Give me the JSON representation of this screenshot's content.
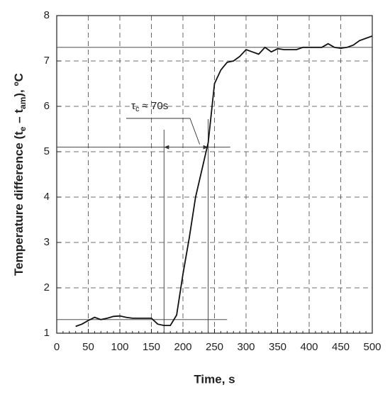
{
  "chart_data": {
    "type": "line",
    "xlabel": "Time, s",
    "ylabel_parts": [
      "Temperature difference (t",
      "e",
      " – t",
      "am",
      "), ºC"
    ],
    "annotation_parts": [
      "τ",
      "c",
      " ≈ 70s"
    ],
    "x": [
      30,
      40,
      50,
      60,
      70,
      80,
      90,
      100,
      110,
      120,
      130,
      140,
      150,
      160,
      170,
      180,
      190,
      200,
      210,
      220,
      230,
      240,
      250,
      260,
      270,
      280,
      290,
      300,
      310,
      320,
      330,
      340,
      350,
      360,
      370,
      380,
      390,
      400,
      410,
      420,
      430,
      440,
      450,
      460,
      470,
      480,
      490,
      500
    ],
    "series": [
      {
        "color": "#111111",
        "values": [
          1.15,
          1.2,
          1.28,
          1.35,
          1.3,
          1.33,
          1.37,
          1.38,
          1.35,
          1.33,
          1.33,
          1.33,
          1.33,
          1.2,
          1.17,
          1.17,
          1.4,
          2.3,
          3.1,
          4.0,
          4.6,
          5.2,
          6.5,
          6.8,
          6.97,
          7.0,
          7.1,
          7.25,
          7.2,
          7.15,
          7.3,
          7.2,
          7.27,
          7.25,
          7.25,
          7.25,
          7.3,
          7.3,
          7.3,
          7.3,
          7.38,
          7.3,
          7.28,
          7.3,
          7.35,
          7.45,
          7.5,
          7.55
        ]
      }
    ],
    "xlim": [
      0,
      500
    ],
    "ylim": [
      1,
      8
    ],
    "xticks": [
      0,
      50,
      100,
      150,
      200,
      250,
      300,
      350,
      400,
      450,
      500
    ],
    "yticks": [
      1,
      2,
      3,
      4,
      5,
      6,
      7,
      8
    ],
    "hlines": [
      7.3,
      5.1,
      1.3
    ],
    "vlines": [
      170,
      240
    ],
    "grid": true
  }
}
